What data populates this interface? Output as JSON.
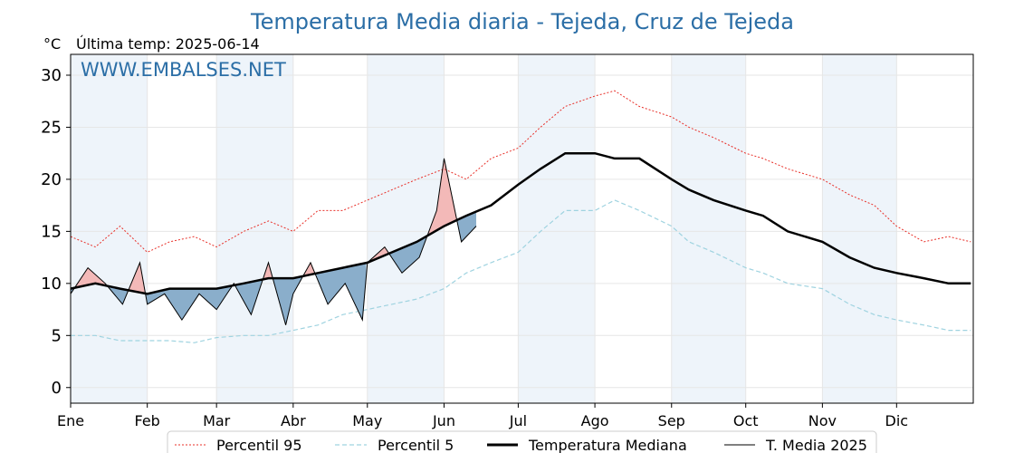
{
  "chart_data": {
    "type": "line",
    "title": "Temperatura Media diaria - Tejeda, Cruz de Tejeda",
    "unit_label": "°C",
    "subtitle": "Última temp: 2025-06-14",
    "watermark": "WWW.EMBALSES.NET",
    "ylim": [
      -1.5,
      32
    ],
    "yticks": [
      0,
      5,
      10,
      15,
      20,
      25,
      30
    ],
    "month_labels": [
      "Ene",
      "Feb",
      "Mar",
      "Abr",
      "May",
      "Jun",
      "Jul",
      "Ago",
      "Sep",
      "Oct",
      "Nov",
      "Dic"
    ],
    "month_start_days": [
      0,
      31,
      59,
      90,
      120,
      151,
      181,
      212,
      243,
      273,
      304,
      334
    ],
    "days_in_year": 365,
    "grid": true,
    "legend_position": "bottom-center",
    "colors": {
      "p95": "#e8312a",
      "p5": "#9fd3e0",
      "median": "#000000",
      "t2025": "#000000",
      "above": "#f3b9b8",
      "below": "#8aaecb",
      "title": "#2b6ea6",
      "shade": "#eef4fa"
    },
    "series": [
      {
        "name": "Percentil 95",
        "style": "dotted-red",
        "x": [
          0,
          10,
          20,
          31,
          40,
          50,
          59,
          70,
          80,
          90,
          100,
          110,
          120,
          130,
          140,
          151,
          160,
          170,
          181,
          190,
          200,
          212,
          220,
          230,
          243,
          250,
          260,
          273,
          280,
          290,
          304,
          315,
          325,
          334,
          345,
          355,
          364
        ],
        "values": [
          14.5,
          13.5,
          15.5,
          13,
          14,
          14.5,
          13.5,
          15,
          16,
          15,
          17,
          17,
          18,
          19,
          20,
          21,
          20,
          22,
          23,
          25,
          27,
          28,
          28.5,
          27,
          26,
          25,
          24,
          22.5,
          22,
          21,
          20,
          18.5,
          17.5,
          15.5,
          14,
          14.5,
          14
        ]
      },
      {
        "name": "Percentil 5",
        "style": "dashed-lightblue",
        "x": [
          0,
          10,
          20,
          31,
          40,
          50,
          59,
          70,
          80,
          90,
          100,
          110,
          120,
          130,
          140,
          151,
          160,
          170,
          181,
          190,
          200,
          212,
          220,
          230,
          243,
          250,
          260,
          273,
          280,
          290,
          304,
          315,
          325,
          334,
          345,
          355,
          364
        ],
        "values": [
          5,
          5,
          4.5,
          4.5,
          4.5,
          4.3,
          4.8,
          5,
          5,
          5.5,
          6,
          7,
          7.5,
          8,
          8.5,
          9.5,
          11,
          12,
          13,
          15,
          17,
          17,
          18,
          17,
          15.5,
          14,
          13,
          11.5,
          11,
          10,
          9.5,
          8,
          7,
          6.5,
          6,
          5.5,
          5.5
        ]
      },
      {
        "name": "Temperatura Mediana",
        "style": "thick-black",
        "x": [
          0,
          10,
          20,
          31,
          40,
          50,
          59,
          70,
          80,
          90,
          100,
          110,
          120,
          130,
          140,
          151,
          160,
          170,
          181,
          190,
          200,
          212,
          220,
          230,
          243,
          250,
          260,
          273,
          280,
          290,
          304,
          315,
          325,
          334,
          345,
          355,
          364
        ],
        "values": [
          9.5,
          10,
          9.5,
          9,
          9.5,
          9.5,
          9.5,
          10,
          10.5,
          10.5,
          11,
          11.5,
          12,
          13,
          14,
          15.5,
          16.5,
          17.5,
          19.5,
          21,
          22.5,
          22.5,
          22,
          22,
          20,
          19,
          18,
          17,
          16.5,
          15,
          14,
          12.5,
          11.5,
          11,
          10.5,
          10,
          10
        ]
      },
      {
        "name": "T. Media 2025",
        "style": "thin-black",
        "x": [
          0,
          7,
          14,
          21,
          28,
          31,
          38,
          45,
          52,
          59,
          66,
          73,
          80,
          87,
          90,
          97,
          104,
          111,
          118,
          120,
          127,
          134,
          141,
          148,
          151,
          158,
          164
        ],
        "values": [
          9,
          11.5,
          10,
          8,
          12,
          8,
          9,
          6.5,
          9,
          7.5,
          10,
          7,
          12,
          6,
          9,
          12,
          8,
          10,
          6.5,
          12,
          13.5,
          11,
          12.5,
          17,
          22,
          14,
          15.5
        ]
      }
    ]
  }
}
